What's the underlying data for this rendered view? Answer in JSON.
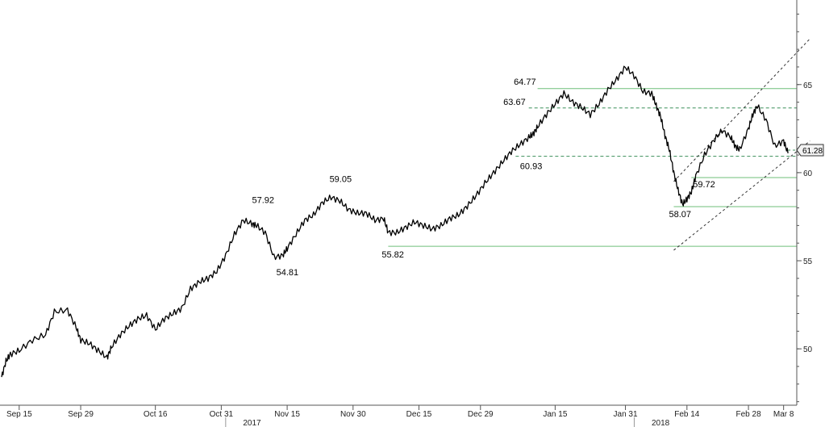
{
  "chart_data": {
    "type": "line",
    "title": "",
    "xlabel": "",
    "ylabel": "",
    "ylim": [
      46.8,
      69.8
    ],
    "y_ticks": [
      50,
      55,
      60,
      65
    ],
    "grid": false,
    "x_ticks": [
      {
        "label": "Sep 15",
        "t": 4
      },
      {
        "label": "Sep 29",
        "t": 18
      },
      {
        "label": "Oct 16",
        "t": 35
      },
      {
        "label": "Oct 31",
        "t": 50
      },
      {
        "label": "Nov 15",
        "t": 65
      },
      {
        "label": "Nov 30",
        "t": 80
      },
      {
        "label": "Dec 15",
        "t": 95
      },
      {
        "label": "Dec 29",
        "t": 109
      },
      {
        "label": "Jan 15",
        "t": 126
      },
      {
        "label": "Jan 31",
        "t": 142
      },
      {
        "label": "Feb 14",
        "t": 156
      },
      {
        "label": "Feb 28",
        "t": 170
      },
      {
        "label": "Mar 8",
        "t": 178
      }
    ],
    "year_labels": [
      {
        "label": "2017",
        "t": 57
      },
      {
        "label": "2018",
        "t": 150
      }
    ],
    "series": [
      {
        "color": "#000000",
        "t": [
          0,
          1,
          2,
          4,
          7,
          10,
          12,
          15,
          17,
          18,
          20,
          22,
          24,
          25,
          27,
          29,
          31,
          33,
          35,
          37,
          39,
          41,
          43,
          45,
          47,
          49,
          51,
          53,
          55,
          57,
          58,
          60,
          62,
          64,
          65,
          67,
          69,
          71,
          73,
          75,
          77,
          79,
          81,
          83,
          85,
          87,
          88,
          90,
          92,
          94,
          96,
          98,
          100,
          102,
          104,
          106,
          108,
          110,
          112,
          114,
          116,
          118,
          120,
          121,
          122,
          124,
          126,
          128,
          130,
          132,
          134,
          136,
          138,
          140,
          142,
          144,
          146,
          148,
          149,
          150,
          151,
          152,
          153,
          154,
          155,
          156,
          157,
          158,
          160,
          162,
          164,
          166,
          167,
          168,
          170,
          171,
          172,
          174,
          176,
          178,
          179
        ],
        "values": [
          48.4,
          49.3,
          49.7,
          49.9,
          50.5,
          50.8,
          52.1,
          52.2,
          51.2,
          50.5,
          50.3,
          49.9,
          49.5,
          50.1,
          50.8,
          51.3,
          51.7,
          51.9,
          51.1,
          51.7,
          52.0,
          52.3,
          53.4,
          53.8,
          54.0,
          54.4,
          55.3,
          56.5,
          57.3,
          57.1,
          57.0,
          56.6,
          55.2,
          55.3,
          55.7,
          56.5,
          57.3,
          57.6,
          58.3,
          58.6,
          58.4,
          57.9,
          57.7,
          57.7,
          57.3,
          57.4,
          56.6,
          56.6,
          56.9,
          57.2,
          57.0,
          56.8,
          57.0,
          57.4,
          57.6,
          58.1,
          58.7,
          59.4,
          60.0,
          60.6,
          61.2,
          61.6,
          62.0,
          62.2,
          62.6,
          63.3,
          63.9,
          64.5,
          64.0,
          63.7,
          63.3,
          63.9,
          64.7,
          65.3,
          66.0,
          65.5,
          64.6,
          64.5,
          63.8,
          63.2,
          62.1,
          61.3,
          60.0,
          59.0,
          58.2,
          58.5,
          58.9,
          59.8,
          61.0,
          61.8,
          62.4,
          62.0,
          61.5,
          61.3,
          62.5,
          63.3,
          63.8,
          63.0,
          61.5,
          61.8,
          61.1
        ]
      }
    ],
    "last_value_label": "61.28",
    "annotations": [
      {
        "label": "57.92",
        "t": 57,
        "value": 57.92
      },
      {
        "label": "54.81",
        "t": 64,
        "value": 54.81
      },
      {
        "label": "59.05",
        "t": 75,
        "value": 59.05
      },
      {
        "label": "55.82",
        "t": 88,
        "value": 55.82
      },
      {
        "label": "63.67",
        "t": 120,
        "value": 63.67
      },
      {
        "label": "64.77",
        "t": 122,
        "value": 64.77
      },
      {
        "label": "60.93",
        "t": 118,
        "value": 60.93
      },
      {
        "label": "59.72",
        "t": 157,
        "value": 59.72
      },
      {
        "label": "58.07",
        "t": 153,
        "value": 58.07
      }
    ],
    "horizontal_lines": [
      {
        "value": 64.77,
        "t_start": 122,
        "style": "solid"
      },
      {
        "value": 63.67,
        "t_start": 120,
        "style": "dashed"
      },
      {
        "value": 60.93,
        "t_start": 117,
        "style": "dashed"
      },
      {
        "value": 59.72,
        "t_start": 157,
        "style": "solid"
      },
      {
        "value": 58.07,
        "t_start": 153,
        "style": "solid"
      },
      {
        "value": 55.82,
        "t_start": 88,
        "style": "solid"
      }
    ],
    "trend_lines": [
      {
        "from": {
          "t": 153,
          "value": 55.6
        },
        "to": {
          "t": 184,
          "value": 61.8
        }
      },
      {
        "from": {
          "t": 153,
          "value": 59.5
        },
        "to": {
          "t": 184,
          "value": 67.6
        }
      }
    ],
    "colors": {
      "line": "#000000",
      "level": "#6fbf7a",
      "axis": "#555555",
      "label_box_fill": "#f2f2f2"
    }
  }
}
